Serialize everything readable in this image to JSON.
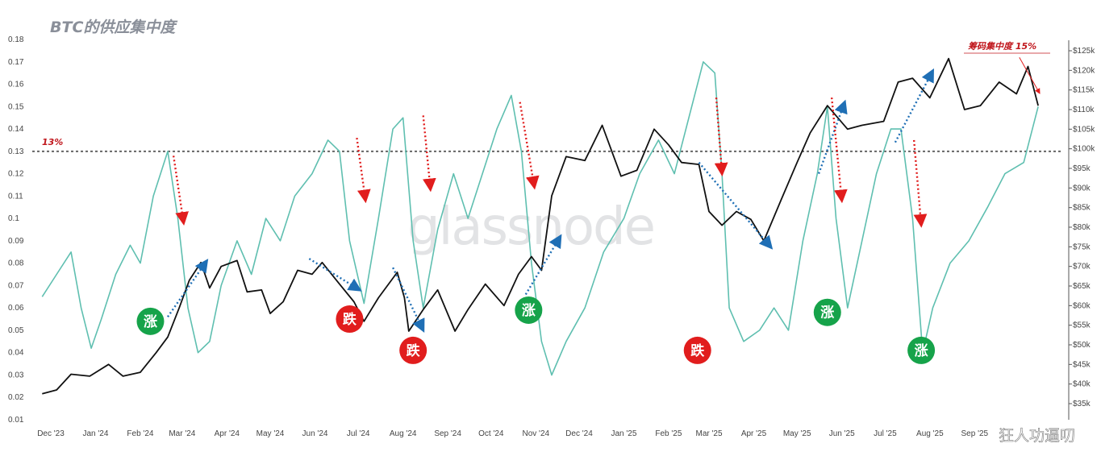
{
  "chart_data": {
    "type": "line",
    "title": "BTC的供应集中度",
    "watermark": "glassnode",
    "credit": "狂人功逼叨",
    "x_ticks": [
      "Dec '23",
      "Jan '24",
      "Feb '24",
      "Mar '24",
      "Apr '24",
      "May '24",
      "Jun '24",
      "Jul '24",
      "Aug '24",
      "Sep '24",
      "Oct '24",
      "Nov '24",
      "Dec '24",
      "Jan '25",
      "Feb '25",
      "Mar '25",
      "Apr '25",
      "May '25",
      "Jun '25",
      "Jul '25",
      "Aug '25",
      "Sep '25"
    ],
    "y_left_ticks": [
      "0.01",
      "0.02",
      "0.03",
      "0.04",
      "0.05",
      "0.06",
      "0.07",
      "0.08",
      "0.09",
      "0.1",
      "0.11",
      "0.12",
      "0.13",
      "0.14",
      "0.15",
      "0.16",
      "0.17",
      "0.18"
    ],
    "y_right_ticks": [
      "$35k",
      "$40k",
      "$45k",
      "$50k",
      "$55k",
      "$60k",
      "$65k",
      "$70k",
      "$75k",
      "$80k",
      "$85k",
      "$90k",
      "$95k",
      "$100k",
      "$105k",
      "$110k",
      "$115k",
      "$120k",
      "$125k"
    ],
    "y_left_range": [
      0.01,
      0.18
    ],
    "y_right_range": [
      35000,
      125000
    ],
    "series": [
      {
        "axis": "left",
        "color": "#5fbfb0",
        "points": [
          [
            "2023-11-25",
            0.065
          ],
          [
            "2023-12-05",
            0.075
          ],
          [
            "2023-12-15",
            0.085
          ],
          [
            "2023-12-22",
            0.06
          ],
          [
            "2023-12-29",
            0.042
          ],
          [
            "2024-01-05",
            0.055
          ],
          [
            "2024-01-15",
            0.075
          ],
          [
            "2024-01-25",
            0.088
          ],
          [
            "2024-02-01",
            0.08
          ],
          [
            "2024-02-10",
            0.11
          ],
          [
            "2024-02-20",
            0.13
          ],
          [
            "2024-02-27",
            0.1
          ],
          [
            "2024-03-05",
            0.06
          ],
          [
            "2024-03-12",
            0.04
          ],
          [
            "2024-03-20",
            0.045
          ],
          [
            "2024-03-28",
            0.07
          ],
          [
            "2024-04-08",
            0.09
          ],
          [
            "2024-04-18",
            0.075
          ],
          [
            "2024-04-28",
            0.1
          ],
          [
            "2024-05-08",
            0.09
          ],
          [
            "2024-05-18",
            0.11
          ],
          [
            "2024-05-30",
            0.12
          ],
          [
            "2024-06-10",
            0.135
          ],
          [
            "2024-06-18",
            0.13
          ],
          [
            "2024-06-25",
            0.09
          ],
          [
            "2024-07-05",
            0.062
          ],
          [
            "2024-07-15",
            0.1
          ],
          [
            "2024-07-25",
            0.14
          ],
          [
            "2024-08-01",
            0.145
          ],
          [
            "2024-08-08",
            0.09
          ],
          [
            "2024-08-15",
            0.06
          ],
          [
            "2024-08-25",
            0.095
          ],
          [
            "2024-09-05",
            0.12
          ],
          [
            "2024-09-15",
            0.1
          ],
          [
            "2024-09-25",
            0.12
          ],
          [
            "2024-10-05",
            0.14
          ],
          [
            "2024-10-15",
            0.155
          ],
          [
            "2024-10-22",
            0.13
          ],
          [
            "2024-10-29",
            0.08
          ],
          [
            "2024-11-05",
            0.045
          ],
          [
            "2024-11-12",
            0.03
          ],
          [
            "2024-11-22",
            0.045
          ],
          [
            "2024-12-05",
            0.06
          ],
          [
            "2024-12-18",
            0.085
          ],
          [
            "2025-01-01",
            0.1
          ],
          [
            "2025-01-12",
            0.12
          ],
          [
            "2025-01-25",
            0.135
          ],
          [
            "2025-02-05",
            0.12
          ],
          [
            "2025-02-15",
            0.145
          ],
          [
            "2025-02-25",
            0.17
          ],
          [
            "2025-03-05",
            0.165
          ],
          [
            "2025-03-10",
            0.12
          ],
          [
            "2025-03-15",
            0.06
          ],
          [
            "2025-03-25",
            0.045
          ],
          [
            "2025-04-05",
            0.05
          ],
          [
            "2025-04-15",
            0.06
          ],
          [
            "2025-04-25",
            0.05
          ],
          [
            "2025-05-05",
            0.09
          ],
          [
            "2025-05-15",
            0.12
          ],
          [
            "2025-05-22",
            0.15
          ],
          [
            "2025-05-28",
            0.1
          ],
          [
            "2025-06-05",
            0.06
          ],
          [
            "2025-06-15",
            0.09
          ],
          [
            "2025-06-25",
            0.12
          ],
          [
            "2025-07-05",
            0.14
          ],
          [
            "2025-07-12",
            0.14
          ],
          [
            "2025-07-20",
            0.1
          ],
          [
            "2025-07-27",
            0.04
          ],
          [
            "2025-08-03",
            0.06
          ],
          [
            "2025-08-15",
            0.08
          ],
          [
            "2025-08-28",
            0.09
          ],
          [
            "2025-09-10",
            0.105
          ],
          [
            "2025-09-22",
            0.12
          ],
          [
            "2025-10-05",
            0.125
          ],
          [
            "2025-10-15",
            0.15
          ]
        ]
      },
      {
        "axis": "right",
        "color": "#111111",
        "points": [
          [
            "2023-11-25",
            37500
          ],
          [
            "2023-12-05",
            38500
          ],
          [
            "2023-12-15",
            42500
          ],
          [
            "2023-12-28",
            42000
          ],
          [
            "2024-01-10",
            45000
          ],
          [
            "2024-01-20",
            42000
          ],
          [
            "2024-02-01",
            43000
          ],
          [
            "2024-02-12",
            48000
          ],
          [
            "2024-02-20",
            52000
          ],
          [
            "2024-02-28",
            59500
          ],
          [
            "2024-03-06",
            66500
          ],
          [
            "2024-03-14",
            71000
          ],
          [
            "2024-03-20",
            64500
          ],
          [
            "2024-03-28",
            70000
          ],
          [
            "2024-04-08",
            71500
          ],
          [
            "2024-04-15",
            63500
          ],
          [
            "2024-04-25",
            64000
          ],
          [
            "2024-05-01",
            58000
          ],
          [
            "2024-05-10",
            61000
          ],
          [
            "2024-05-20",
            69000
          ],
          [
            "2024-05-30",
            68000
          ],
          [
            "2024-06-06",
            71000
          ],
          [
            "2024-06-18",
            65500
          ],
          [
            "2024-06-28",
            61000
          ],
          [
            "2024-07-05",
            56000
          ],
          [
            "2024-07-15",
            62000
          ],
          [
            "2024-07-28",
            68500
          ],
          [
            "2024-08-02",
            62000
          ],
          [
            "2024-08-05",
            53500
          ],
          [
            "2024-08-15",
            59000
          ],
          [
            "2024-08-25",
            64000
          ],
          [
            "2024-09-06",
            53500
          ],
          [
            "2024-09-15",
            59000
          ],
          [
            "2024-09-27",
            65500
          ],
          [
            "2024-10-10",
            60000
          ],
          [
            "2024-10-20",
            68000
          ],
          [
            "2024-10-29",
            72500
          ],
          [
            "2024-11-05",
            69000
          ],
          [
            "2024-11-12",
            88000
          ],
          [
            "2024-11-22",
            98000
          ],
          [
            "2024-12-05",
            97000
          ],
          [
            "2024-12-17",
            106000
          ],
          [
            "2024-12-30",
            93000
          ],
          [
            "2025-01-10",
            94500
          ],
          [
            "2025-01-22",
            105000
          ],
          [
            "2025-02-01",
            101000
          ],
          [
            "2025-02-10",
            96500
          ],
          [
            "2025-02-22",
            96000
          ],
          [
            "2025-03-01",
            84000
          ],
          [
            "2025-03-10",
            80500
          ],
          [
            "2025-03-20",
            84000
          ],
          [
            "2025-03-30",
            82000
          ],
          [
            "2025-04-08",
            76500
          ],
          [
            "2025-04-20",
            87000
          ],
          [
            "2025-05-01",
            96500
          ],
          [
            "2025-05-10",
            104000
          ],
          [
            "2025-05-22",
            111000
          ],
          [
            "2025-06-05",
            105000
          ],
          [
            "2025-06-15",
            106000
          ],
          [
            "2025-06-30",
            107000
          ],
          [
            "2025-07-10",
            117000
          ],
          [
            "2025-07-20",
            118000
          ],
          [
            "2025-08-01",
            113000
          ],
          [
            "2025-08-14",
            123000
          ],
          [
            "2025-08-25",
            110000
          ],
          [
            "2025-09-05",
            111000
          ],
          [
            "2025-09-18",
            117000
          ],
          [
            "2025-09-30",
            114000
          ],
          [
            "2025-10-08",
            121000
          ],
          [
            "2025-10-15",
            111000
          ]
        ]
      }
    ],
    "reference_line": {
      "value": 0.13,
      "label": "13%",
      "color": "#666666"
    },
    "annotations": {
      "top_note": "筹码集中度 15%",
      "badges": [
        {
          "text": "涨",
          "color": "#16a34a",
          "x": "2024-02-08",
          "y": 0.054
        },
        {
          "text": "跌",
          "color": "#e11d1d",
          "x": "2024-06-25",
          "y": 0.055
        },
        {
          "text": "跌",
          "color": "#e11d1d",
          "x": "2024-08-08",
          "y": 0.041
        },
        {
          "text": "涨",
          "color": "#16a34a",
          "x": "2024-10-27",
          "y": 0.059
        },
        {
          "text": "跌",
          "color": "#e11d1d",
          "x": "2025-02-21",
          "y": 0.041
        },
        {
          "text": "涨",
          "color": "#16a34a",
          "x": "2025-05-22",
          "y": 0.058
        },
        {
          "text": "涨",
          "color": "#16a34a",
          "x": "2025-07-26",
          "y": 0.041
        }
      ],
      "blue_arrows": [
        {
          "from": [
            "2024-02-20",
            0.056
          ],
          "to": [
            "2024-03-18",
            0.081
          ]
        },
        {
          "from": [
            "2024-05-28",
            0.082
          ],
          "to": [
            "2024-07-02",
            0.068
          ]
        },
        {
          "from": [
            "2024-07-25",
            0.078
          ],
          "to": [
            "2024-08-15",
            0.05
          ]
        },
        {
          "from": [
            "2024-10-25",
            0.066
          ],
          "to": [
            "2024-11-18",
            0.092
          ]
        },
        {
          "from": [
            "2025-02-22",
            0.125
          ],
          "to": [
            "2025-04-13",
            0.087
          ]
        },
        {
          "from": [
            "2025-05-16",
            0.12
          ],
          "to": [
            "2025-06-03",
            0.152
          ]
        },
        {
          "from": [
            "2025-07-08",
            0.134
          ],
          "to": [
            "2025-08-03",
            0.166
          ]
        }
      ],
      "red_arrows": [
        {
          "from": [
            "2024-02-24",
            0.128
          ],
          "to": [
            "2024-03-02",
            0.098
          ]
        },
        {
          "from": [
            "2024-06-30",
            0.136
          ],
          "to": [
            "2024-07-06",
            0.108
          ]
        },
        {
          "from": [
            "2024-08-15",
            0.146
          ],
          "to": [
            "2024-08-20",
            0.113
          ]
        },
        {
          "from": [
            "2024-10-21",
            0.152
          ],
          "to": [
            "2024-10-31",
            0.114
          ]
        },
        {
          "from": [
            "2025-03-06",
            0.154
          ],
          "to": [
            "2025-03-10",
            0.12
          ]
        },
        {
          "from": [
            "2025-05-25",
            0.154
          ],
          "to": [
            "2025-06-01",
            0.108
          ]
        },
        {
          "from": [
            "2025-07-21",
            0.135
          ],
          "to": [
            "2025-07-26",
            0.097
          ]
        }
      ],
      "note_arrow": {
        "from": [
          "2025-10-02",
          0.172
        ],
        "to": [
          "2025-10-16",
          0.156
        ]
      }
    }
  }
}
